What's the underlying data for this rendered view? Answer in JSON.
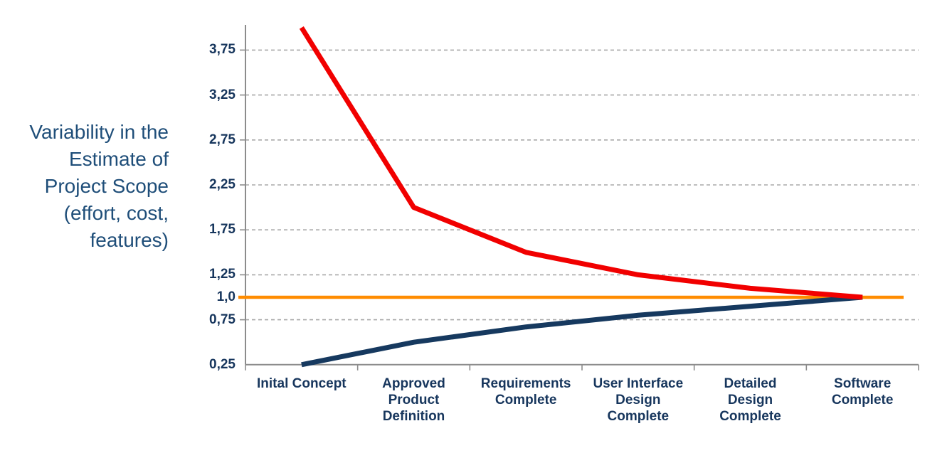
{
  "y_axis_title": {
    "lines": [
      "Variability in the",
      "Estimate of",
      "Project Scope",
      "(effort, cost,",
      "features)"
    ]
  },
  "chart_data": {
    "type": "line",
    "title": "",
    "categories": [
      "Inital Concept",
      "Approved Product Definition",
      "Requirements Complete",
      "User Interface Design Complete",
      "Detailed Design Complete",
      "Software Complete"
    ],
    "category_label_lines": [
      [
        "Inital Concept"
      ],
      [
        "Approved",
        "Product",
        "Definition"
      ],
      [
        "Requirements",
        "Complete"
      ],
      [
        "User Interface",
        "Design",
        "Complete"
      ],
      [
        "Detailed",
        "Design",
        "Complete"
      ],
      [
        "Software",
        "Complete"
      ]
    ],
    "series": [
      {
        "name": "upper-variability-bound",
        "color": "#F10000",
        "values": [
          4.0,
          2.0,
          1.5,
          1.25,
          1.1,
          1.0
        ]
      },
      {
        "name": "lower-variability-bound",
        "color": "#16395F",
        "values": [
          0.25,
          0.5,
          0.67,
          0.8,
          0.9,
          1.0
        ]
      }
    ],
    "reference_line": {
      "value": 1.0,
      "label": "1,0",
      "color": "#FF8C00"
    },
    "y_ticks": [
      {
        "value": 3.75,
        "label": "3,75",
        "grid": true
      },
      {
        "value": 3.25,
        "label": "3,25",
        "grid": true
      },
      {
        "value": 2.75,
        "label": "2,75",
        "grid": true
      },
      {
        "value": 2.25,
        "label": "2,25",
        "grid": true
      },
      {
        "value": 1.75,
        "label": "1,75",
        "grid": true
      },
      {
        "value": 1.25,
        "label": "1,25",
        "grid": true
      },
      {
        "value": 1.0,
        "label": "1,0",
        "grid": false
      },
      {
        "value": 0.75,
        "label": "0,75",
        "grid": true
      },
      {
        "value": 0.25,
        "label": "0,25",
        "grid": false
      }
    ],
    "ylim": [
      0.25,
      4.05
    ],
    "grid": "horizontal-dashed",
    "legend": "none"
  },
  "colors": {
    "background": "#FFFFFF",
    "axis": "#8C8C8C",
    "gridline": "#A8A8A8",
    "tick_label": "#17365D",
    "axis_title": "#1F4E79",
    "upper_line": "#F10000",
    "lower_line": "#16395F",
    "reference_line": "#FF8C00"
  }
}
